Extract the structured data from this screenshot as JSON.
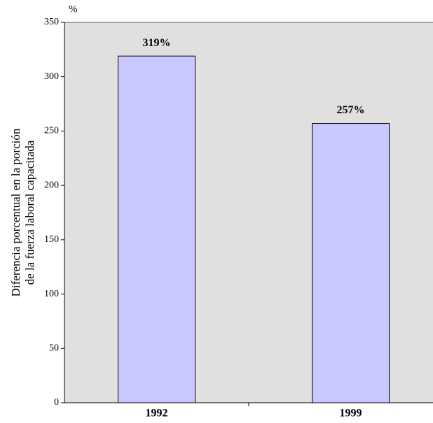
{
  "chart_data": {
    "type": "bar",
    "ylabel": [
      "Diferencia porcentual en la porción",
      "de la fuerza laboral capacitada"
    ],
    "y_unit": "%",
    "categories": [
      "1992",
      "1999"
    ],
    "values": [
      319,
      257
    ],
    "value_labels": [
      "319%",
      "257%"
    ],
    "color": "#c8c8ff",
    "ylim": [
      0,
      350
    ],
    "yticks": [
      0,
      50,
      100,
      150,
      200,
      250,
      300,
      350
    ],
    "grid": false
  }
}
